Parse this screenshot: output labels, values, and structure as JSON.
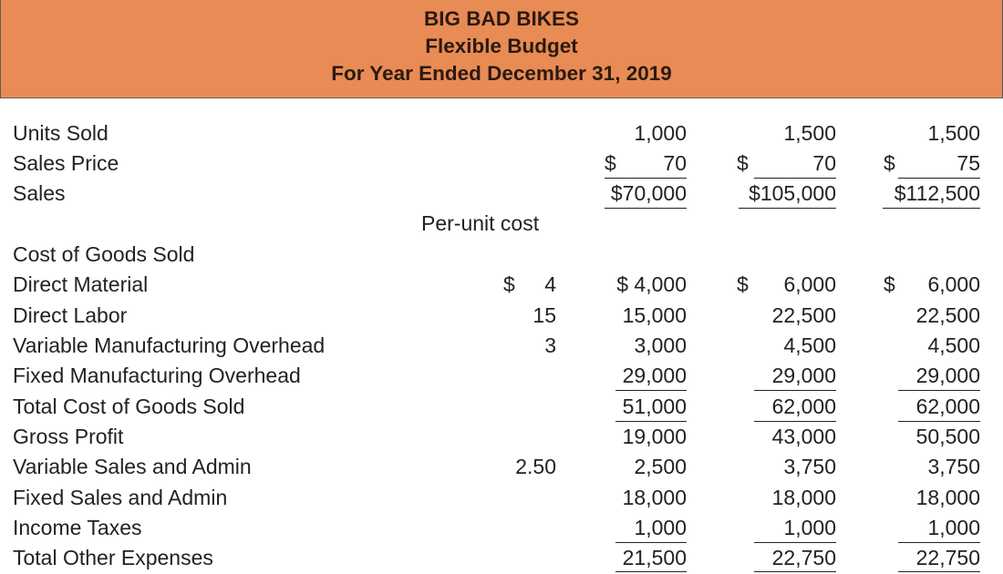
{
  "colors": {
    "header_bg": "#e98b54",
    "rule": "#222222"
  },
  "header": {
    "company": "BIG BAD BIKES",
    "title": "Flexible Budget",
    "period": "For Year Ended December 31, 2019"
  },
  "per_unit_heading": "Per-unit cost",
  "currency": "$",
  "rows": [
    {
      "label": "Units Sold",
      "unit": "",
      "c1": "1,000",
      "c2": "1,500",
      "c3": "1,500"
    },
    {
      "label": "Sales Price",
      "unit": "",
      "c1": "70",
      "c2": "70",
      "c3": "75"
    },
    {
      "label": "Sales",
      "unit": "",
      "c1": "$70,000",
      "c2": "$105,000",
      "c3": "$112,500"
    },
    {
      "label": "Cost of Goods Sold",
      "unit": "",
      "c1": "",
      "c2": "",
      "c3": ""
    },
    {
      "label": "Direct Material",
      "unit": "4",
      "c1": "$ 4,000",
      "c2": "6,000",
      "c3": "6,000"
    },
    {
      "label": "Direct Labor",
      "unit": "15",
      "c1": "15,000",
      "c2": "22,500",
      "c3": "22,500"
    },
    {
      "label": "Variable Manufacturing Overhead",
      "unit": "3",
      "c1": "3,000",
      "c2": "4,500",
      "c3": "4,500"
    },
    {
      "label": "Fixed Manufacturing Overhead",
      "unit": "",
      "c1": "29,000",
      "c2": "29,000",
      "c3": "29,000"
    },
    {
      "label": "Total Cost of Goods Sold",
      "unit": "",
      "c1": "51,000",
      "c2": "62,000",
      "c3": "62,000"
    },
    {
      "label": "Gross Profit",
      "unit": "",
      "c1": "19,000",
      "c2": "43,000",
      "c3": "50,500"
    },
    {
      "label": "Variable Sales and Admin",
      "unit": "2.50",
      "c1": "2,500",
      "c2": "3,750",
      "c3": "3,750"
    },
    {
      "label": "Fixed Sales and Admin",
      "unit": "",
      "c1": "18,000",
      "c2": "18,000",
      "c3": "18,000"
    },
    {
      "label": "Income Taxes",
      "unit": "",
      "c1": "1,000",
      "c2": "1,000",
      "c3": "1,000"
    },
    {
      "label": "Total Other Expenses",
      "unit": "",
      "c1": "21,500",
      "c2": "22,750",
      "c3": "22,750"
    }
  ]
}
